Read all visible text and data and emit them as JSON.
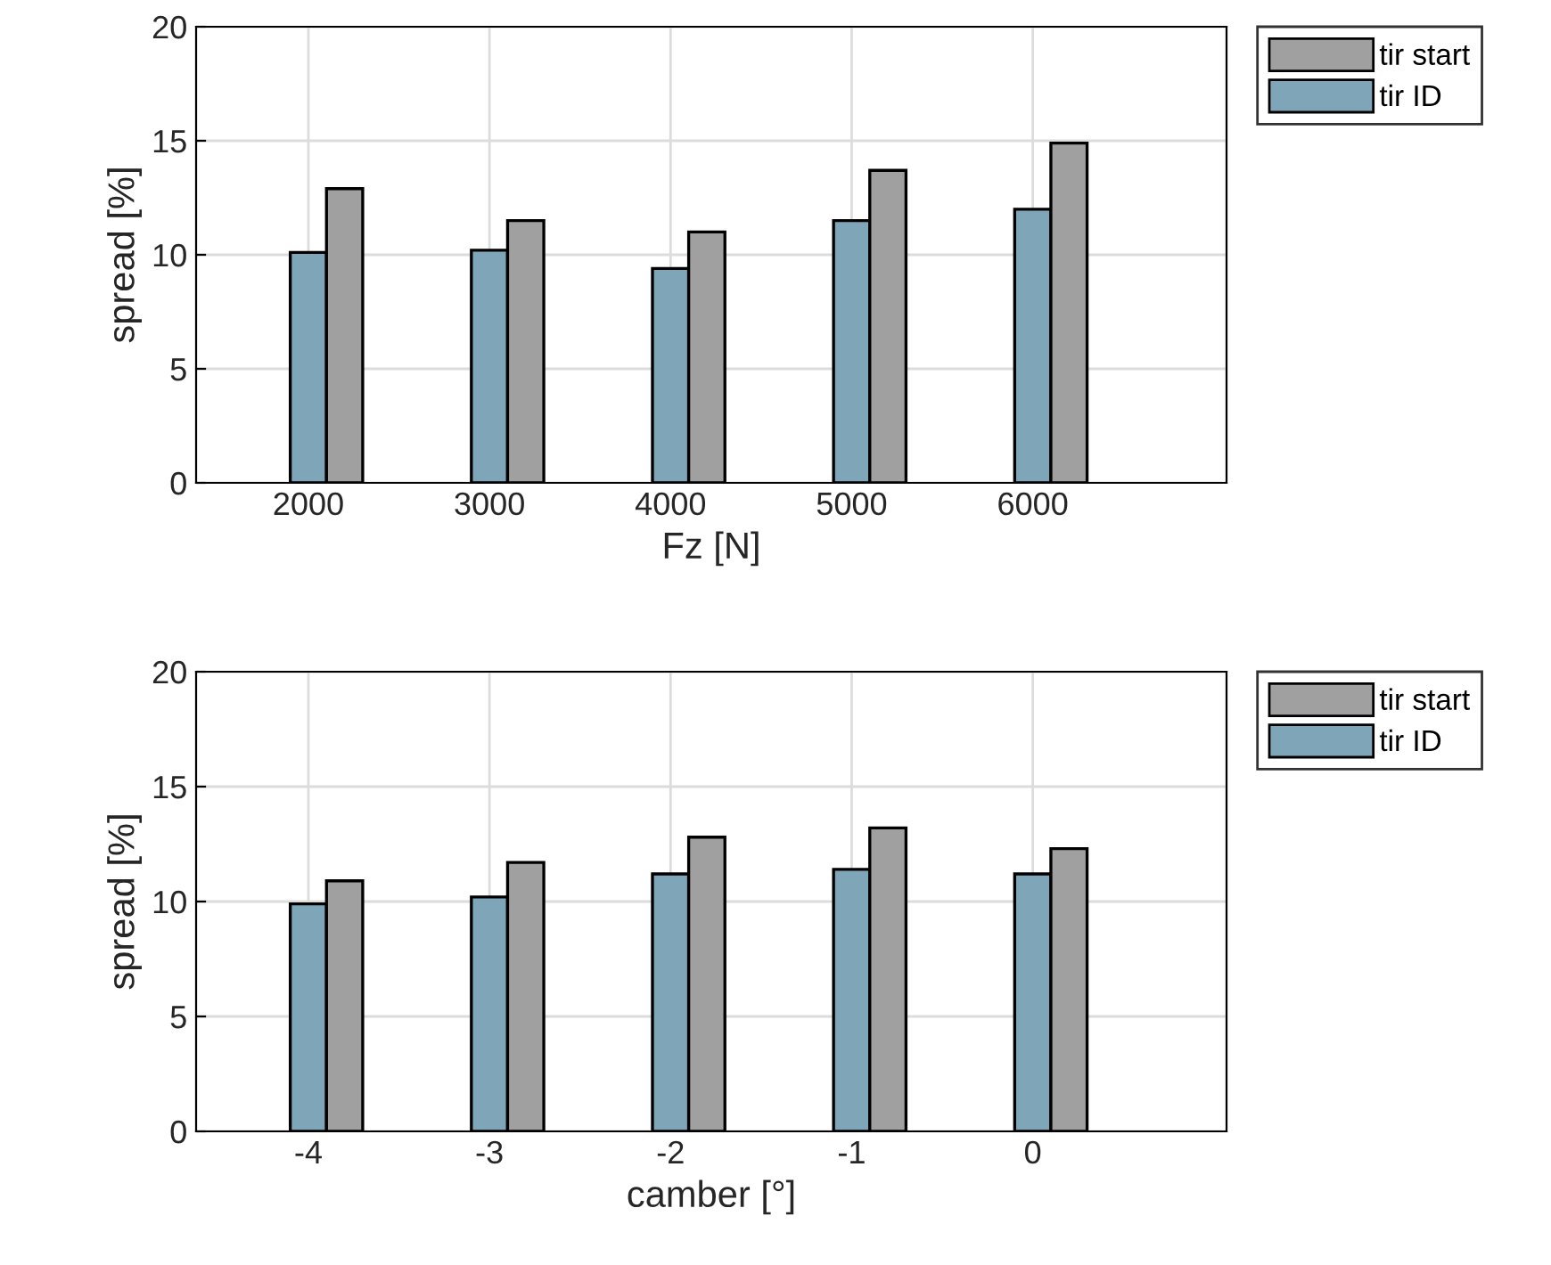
{
  "chart_data": [
    {
      "type": "bar",
      "xlabel": "Fz [N]",
      "ylabel": "spread [%]",
      "categories": [
        "2000",
        "3000",
        "4000",
        "5000",
        "6000"
      ],
      "ylim": [
        0,
        20
      ],
      "yticks": [
        0,
        5,
        10,
        15,
        20
      ],
      "grid": true,
      "legend": "top right",
      "series": [
        {
          "name": "tir ID",
          "color": "#7fa6b8",
          "values": [
            10.1,
            10.2,
            9.4,
            11.5,
            12.0
          ]
        },
        {
          "name": "tir start",
          "color": "#a0a0a0",
          "values": [
            12.9,
            11.5,
            11.0,
            13.7,
            14.9
          ]
        }
      ]
    },
    {
      "type": "bar",
      "xlabel": "camber [°]",
      "ylabel": "spread [%]",
      "categories": [
        "-4",
        "-3",
        "-2",
        "-1",
        "0"
      ],
      "ylim": [
        0,
        20
      ],
      "yticks": [
        0,
        5,
        10,
        15,
        20
      ],
      "grid": true,
      "legend": "top right",
      "series": [
        {
          "name": "tir ID",
          "color": "#7fa6b8",
          "values": [
            9.9,
            10.2,
            11.2,
            11.4,
            11.2
          ]
        },
        {
          "name": "tir start",
          "color": "#a0a0a0",
          "values": [
            10.9,
            11.7,
            12.8,
            13.2,
            12.3
          ]
        }
      ]
    }
  ]
}
